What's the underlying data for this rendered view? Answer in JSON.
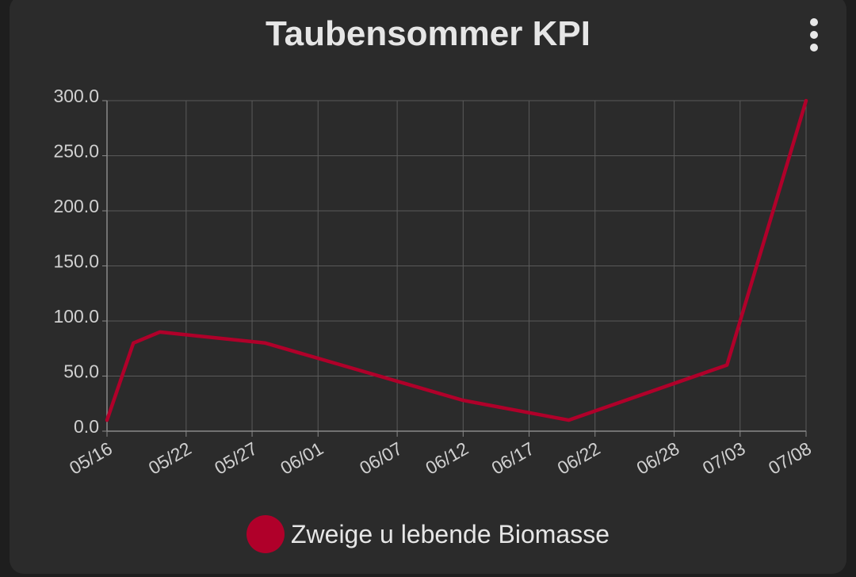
{
  "chart_data": {
    "type": "line",
    "title": "Taubensommer KPI",
    "x": [
      "05/16",
      "05/18",
      "05/20",
      "05/28",
      "06/12",
      "06/20",
      "07/02",
      "07/08"
    ],
    "x_ticks": [
      "05/16",
      "05/22",
      "05/27",
      "06/01",
      "06/07",
      "06/12",
      "06/17",
      "06/22",
      "06/28",
      "07/03",
      "07/08"
    ],
    "y_ticks": [
      "0.0",
      "50.0",
      "100.0",
      "150.0",
      "200.0",
      "250.0",
      "300.0"
    ],
    "ylim": [
      0,
      300
    ],
    "grid": true,
    "legend_position": "bottom",
    "series": [
      {
        "name": "Zweige u lebende Biomasse",
        "color": "#b0002a",
        "values": [
          10,
          80,
          90,
          80,
          28,
          10,
          60,
          300
        ]
      }
    ]
  },
  "menu_icon": "more-vertical-icon"
}
